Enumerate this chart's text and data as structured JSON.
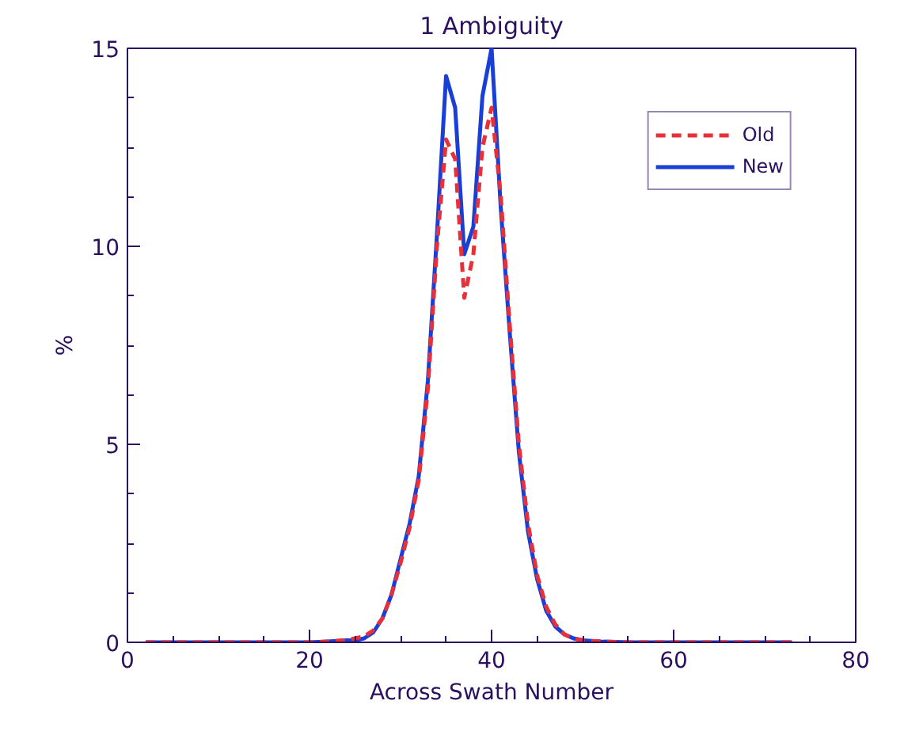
{
  "chart_data": {
    "type": "line",
    "title": "1 Ambiguity",
    "xlabel": "Across Swath Number",
    "ylabel": "%",
    "x": [
      2,
      5,
      10,
      15,
      20,
      22,
      24,
      25,
      26,
      27,
      28,
      29,
      30,
      31,
      32,
      33,
      34,
      35,
      36,
      37,
      38,
      39,
      40,
      41,
      42,
      43,
      44,
      45,
      46,
      47,
      48,
      49,
      50,
      52,
      55,
      60,
      65,
      70,
      73
    ],
    "series": [
      {
        "name": "Old",
        "color": "#e8303a",
        "line_style": "dashed",
        "values": [
          0,
          0,
          0,
          0,
          0,
          0.02,
          0.05,
          0.1,
          0.15,
          0.3,
          0.6,
          1.2,
          2.0,
          2.9,
          4.1,
          6.4,
          10.0,
          12.7,
          12.2,
          8.7,
          9.8,
          12.5,
          13.5,
          11.3,
          8.0,
          5.0,
          3.0,
          1.7,
          0.9,
          0.45,
          0.2,
          0.1,
          0.05,
          0.02,
          0,
          0,
          0,
          0,
          0
        ]
      },
      {
        "name": "New",
        "color": "#1a3fd6",
        "line_style": "solid",
        "values": [
          0,
          0,
          0,
          0,
          0,
          0.02,
          0.05,
          0.05,
          0.1,
          0.25,
          0.6,
          1.2,
          2.1,
          3.0,
          4.2,
          6.6,
          10.3,
          14.3,
          13.5,
          9.8,
          10.5,
          13.8,
          15.0,
          11.0,
          7.8,
          4.8,
          2.8,
          1.6,
          0.8,
          0.4,
          0.2,
          0.1,
          0.05,
          0.02,
          0,
          0,
          0,
          0,
          0
        ]
      }
    ],
    "xlim": [
      0,
      80
    ],
    "xticks": [
      0,
      20,
      40,
      60,
      80
    ],
    "ylim": [
      0,
      15
    ],
    "yticks": [
      0,
      5,
      10,
      15
    ],
    "grid": false,
    "legend": "top right"
  }
}
